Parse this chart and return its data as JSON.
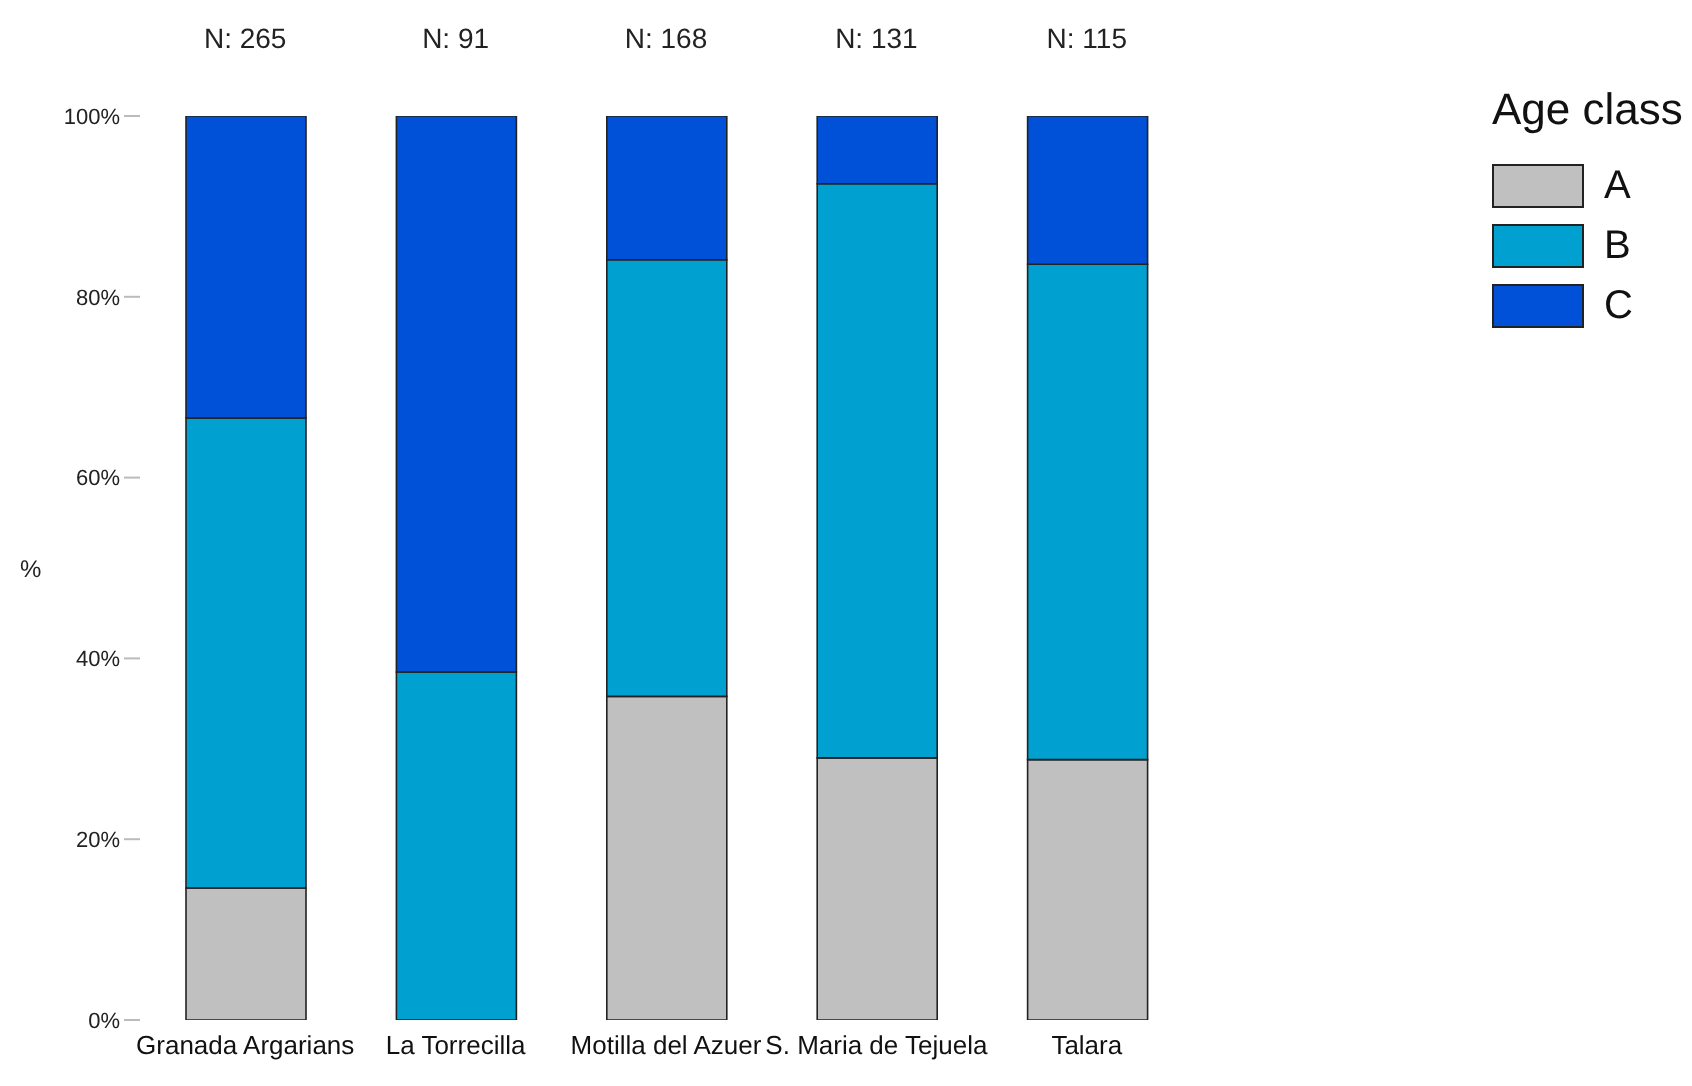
{
  "chart_data": {
    "type": "bar",
    "stacked": true,
    "categories": [
      "Granada Argarians",
      "La Torrecilla",
      "Motilla del Azuer",
      "S. Maria de Tejuela",
      "Talara"
    ],
    "series": [
      {
        "name": "A",
        "color": "#c0c0c0",
        "values": [
          14.6,
          0,
          35.8,
          29.0,
          28.8
        ]
      },
      {
        "name": "B",
        "color": "#00a0d0",
        "values": [
          52.0,
          38.5,
          48.3,
          63.5,
          54.8
        ]
      },
      {
        "name": "C",
        "color": "#0050d8",
        "values": [
          33.4,
          61.5,
          15.9,
          7.5,
          16.4
        ]
      }
    ],
    "ylabel": "%",
    "legend_title": "Age class",
    "legend": "top right",
    "grid": false,
    "ylim": [
      0,
      100
    ],
    "yticks": [
      {
        "value": 0,
        "label": "0%"
      },
      {
        "value": 20,
        "label": "20%"
      },
      {
        "value": 40,
        "label": "40%"
      },
      {
        "value": 60,
        "label": "60%"
      },
      {
        "value": 80,
        "label": "80%"
      },
      {
        "value": 100,
        "label": "100%"
      }
    ],
    "annotations": [
      {
        "text": "N: 265",
        "x": "Granada Argarians",
        "y": 100
      },
      {
        "text": "N: 91",
        "x": "La Torrecilla",
        "y": 100
      },
      {
        "text": "N: 168",
        "x": "Motilla del Azuer",
        "y": 100
      },
      {
        "text": "N: 131",
        "x": "S. Maria de Tejuela",
        "y": 100
      },
      {
        "text": "N: 115",
        "x": "Talara",
        "y": 100
      }
    ]
  }
}
